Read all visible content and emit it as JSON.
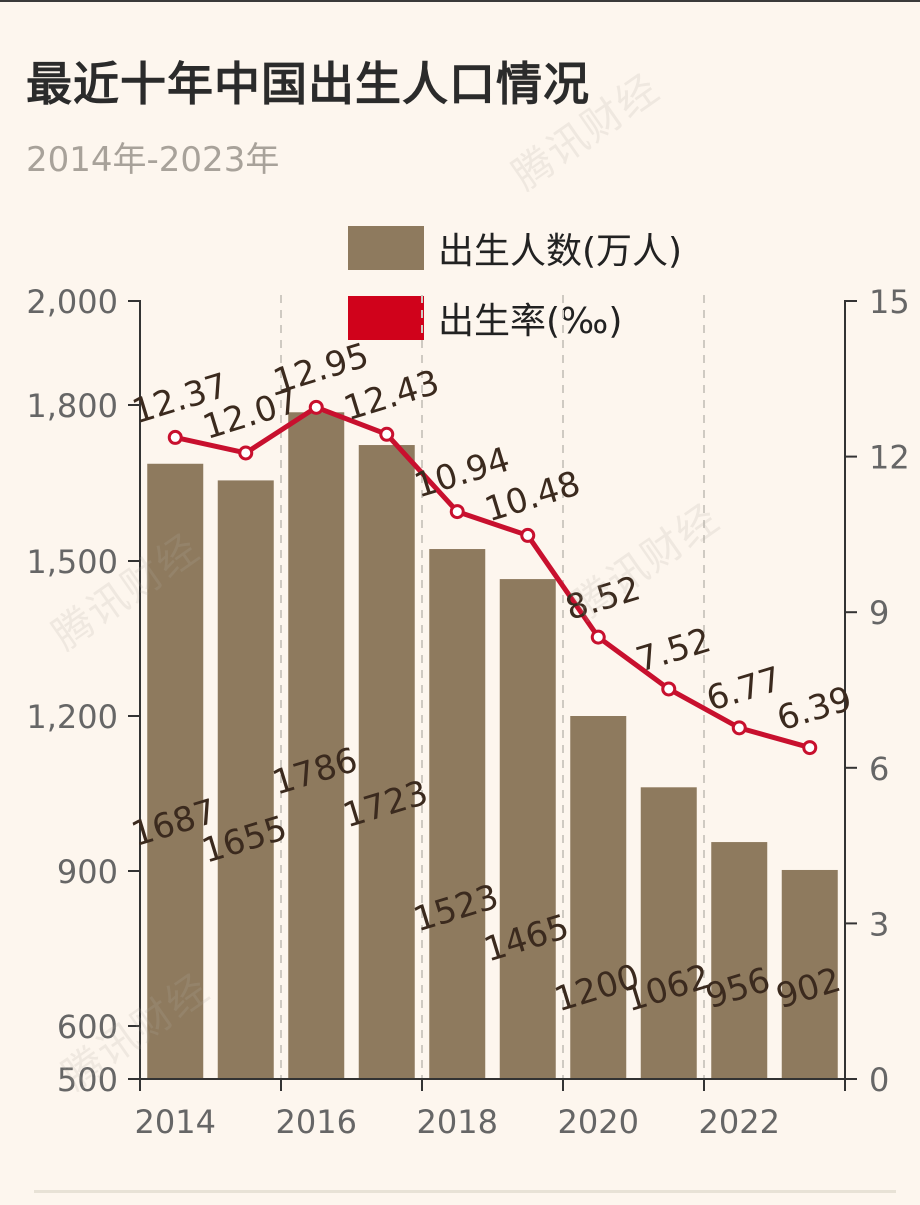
{
  "title": "最近十年中国出生人口情况",
  "subtitle": "2014年-2023年",
  "watermark": "腾讯财经",
  "colors": {
    "bar": "#8e7a5e",
    "line": "#c8102e",
    "axis": "#333333",
    "label": "#3b2a1e",
    "tick": "#555555"
  },
  "chart_data": {
    "type": "bar",
    "categories": [
      "2014",
      "2015",
      "2016",
      "2017",
      "2018",
      "2019",
      "2020",
      "2021",
      "2022",
      "2023"
    ],
    "series": [
      {
        "name": "出生人数(万人)",
        "type": "bar",
        "axis": "left",
        "values": [
          1687,
          1655,
          1786,
          1723,
          1523,
          1465,
          1200,
          1062,
          956,
          902
        ]
      },
      {
        "name": "出生率(‰)",
        "type": "line",
        "axis": "right",
        "values": [
          12.37,
          12.07,
          12.95,
          12.43,
          10.94,
          10.48,
          8.52,
          7.52,
          6.77,
          6.39
        ]
      }
    ],
    "x_tick_labels": [
      "2014",
      "2016",
      "2018",
      "2020",
      "2022"
    ],
    "y_left": {
      "ticks": [
        500,
        600,
        900,
        1200,
        1500,
        1800,
        2000
      ],
      "tick_labels": [
        "500",
        "600",
        "900",
        "1,200",
        "1,500",
        "1,800",
        "2,000"
      ]
    },
    "y_right": {
      "ticks": [
        0,
        3,
        6,
        9,
        12,
        15
      ],
      "tick_labels": [
        "0",
        "3",
        "6",
        "9",
        "12",
        "15"
      ],
      "ylim": [
        0,
        15
      ]
    },
    "grid": "vertical dashed at labeled years",
    "legend": "top-right"
  }
}
